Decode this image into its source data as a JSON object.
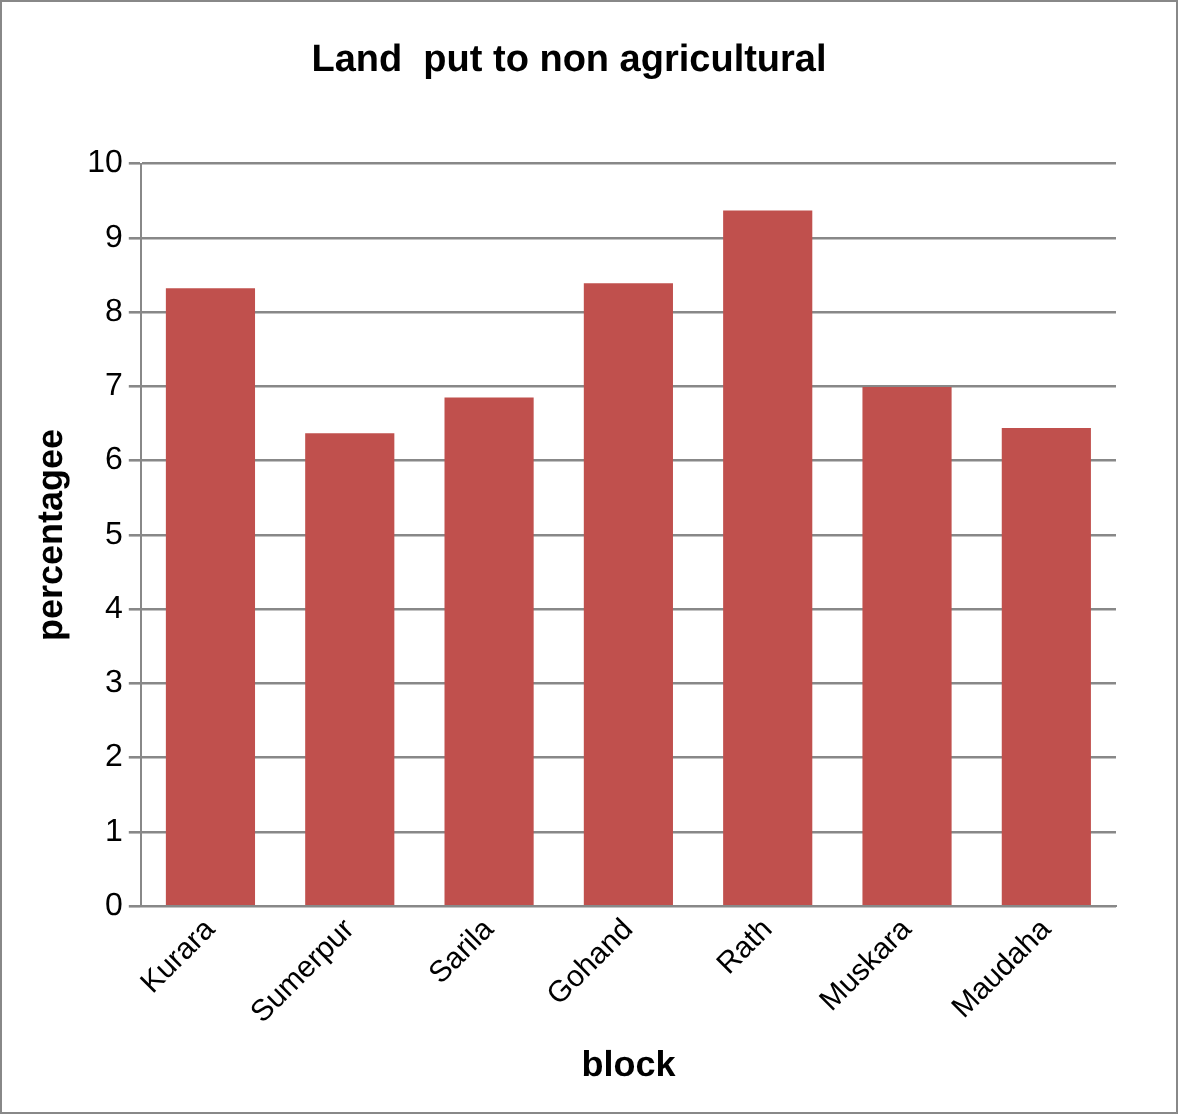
{
  "chart_data": {
    "type": "bar",
    "title": "Land  put to non agricultural",
    "xlabel": "block",
    "ylabel": "percentagee",
    "categories": [
      "Kurara",
      "Sumerpur",
      "Sarila",
      "Gohand",
      "Rath",
      "Muskara",
      "Maudaha"
    ],
    "values": [
      8.32,
      6.37,
      6.85,
      8.39,
      9.37,
      6.99,
      6.44
    ],
    "color": "#c0504d",
    "ylim": [
      0,
      10
    ],
    "yticks": [
      0,
      1,
      2,
      3,
      4,
      5,
      6,
      7,
      8,
      9,
      10
    ],
    "grid": "y",
    "legend": false
  }
}
